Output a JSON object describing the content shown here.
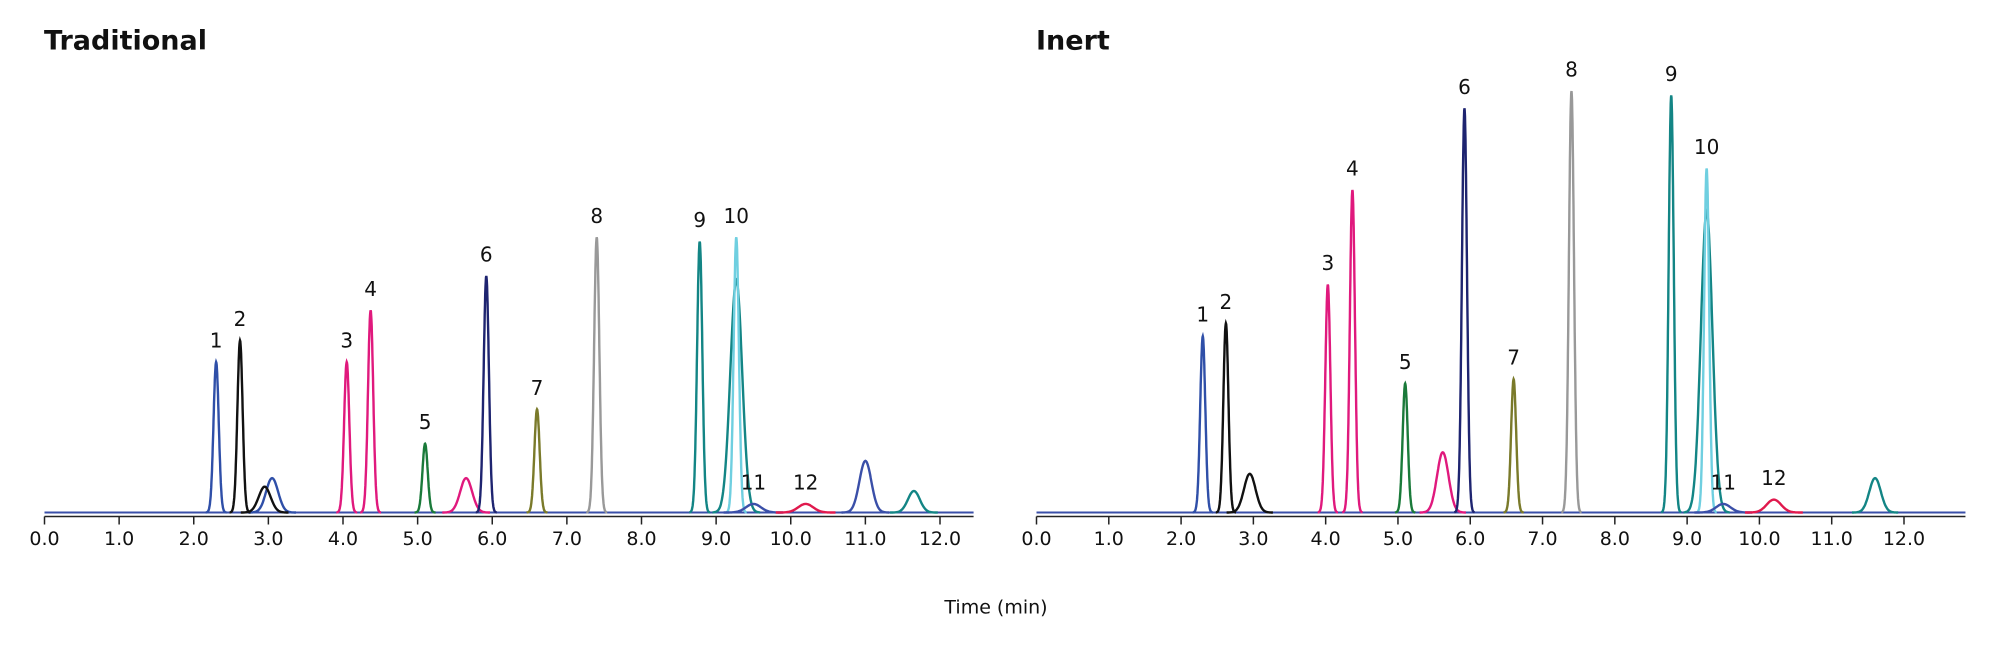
{
  "x_axis_label": "Time (min)",
  "chart_data": [
    {
      "type": "chromatogram",
      "title": "Traditional",
      "xlim": [
        0,
        12.45
      ],
      "ylim": [
        0,
        100
      ],
      "xticks": [
        {
          "value": 0,
          "label": "0.0"
        },
        {
          "value": 1,
          "label": "1.0"
        },
        {
          "value": 2,
          "label": "2.0"
        },
        {
          "value": 3,
          "label": "3.0"
        },
        {
          "value": 4,
          "label": "4.0"
        },
        {
          "value": 5,
          "label": "5.0"
        },
        {
          "value": 6,
          "label": "6.0"
        },
        {
          "value": 7,
          "label": "7.0"
        },
        {
          "value": 8,
          "label": "8.0"
        },
        {
          "value": 9,
          "label": "9.0"
        },
        {
          "value": 10,
          "label": "10.0"
        },
        {
          "value": 11,
          "label": "11.0"
        },
        {
          "value": 12,
          "label": "12.0"
        }
      ],
      "peaks": [
        {
          "label": "1",
          "time": 2.3,
          "height": 35,
          "color": "#2f4fa8"
        },
        {
          "label": "2",
          "time": 2.62,
          "height": 40,
          "color": "#111111"
        },
        {
          "label": "3",
          "time": 4.05,
          "height": 35,
          "color": "#e0197d"
        },
        {
          "label": "4",
          "time": 4.37,
          "height": 47,
          "color": "#e0197d"
        },
        {
          "label": "5",
          "time": 5.1,
          "height": 16,
          "color": "#1a7a3a"
        },
        {
          "label": "6",
          "time": 5.92,
          "height": 55,
          "color": "#1e2470"
        },
        {
          "label": "7",
          "time": 6.6,
          "height": 24,
          "color": "#7a7a2a"
        },
        {
          "label": "8",
          "time": 7.4,
          "height": 64,
          "color": "#999999"
        },
        {
          "label": "9",
          "time": 8.78,
          "height": 63,
          "color": "#138585"
        },
        {
          "label": "10",
          "time": 9.27,
          "height": 64,
          "color": "#6fcfe0"
        },
        {
          "label": "11",
          "time": 9.5,
          "height": 2,
          "color": "#3a4fa8"
        },
        {
          "label": "12",
          "time": 10.2,
          "height": 2,
          "color": "#e0194d"
        }
      ],
      "minor_peaks": [
        {
          "time": 9.27,
          "height": 54,
          "color": "#138585"
        },
        {
          "time": 3.05,
          "height": 8,
          "color": "#2f4fa8"
        },
        {
          "time": 2.95,
          "height": 6,
          "color": "#111111"
        },
        {
          "time": 5.65,
          "height": 8,
          "color": "#e0197d"
        },
        {
          "time": 11.0,
          "height": 12,
          "color": "#3a4fa8"
        },
        {
          "time": 11.65,
          "height": 5,
          "color": "#138585"
        }
      ]
    },
    {
      "type": "chromatogram",
      "title": "Inert",
      "xlim": [
        0,
        12.85
      ],
      "ylim": [
        0,
        100
      ],
      "xticks": [
        {
          "value": 0,
          "label": "0.0"
        },
        {
          "value": 1,
          "label": "1.0"
        },
        {
          "value": 2,
          "label": "2.0"
        },
        {
          "value": 3,
          "label": "3.0"
        },
        {
          "value": 4,
          "label": "4.0"
        },
        {
          "value": 5,
          "label": "5.0"
        },
        {
          "value": 6,
          "label": "6.0"
        },
        {
          "value": 7,
          "label": "7.0"
        },
        {
          "value": 8,
          "label": "8.0"
        },
        {
          "value": 9,
          "label": "9.0"
        },
        {
          "value": 10,
          "label": "10.0"
        },
        {
          "value": 11,
          "label": "11.0"
        },
        {
          "value": 12,
          "label": "12.0"
        }
      ],
      "peaks": [
        {
          "label": "1",
          "time": 2.3,
          "height": 41,
          "color": "#2f4fa8"
        },
        {
          "label": "2",
          "time": 2.62,
          "height": 44,
          "color": "#111111"
        },
        {
          "label": "3",
          "time": 4.03,
          "height": 53,
          "color": "#e0197d"
        },
        {
          "label": "4",
          "time": 4.37,
          "height": 75,
          "color": "#e0197d"
        },
        {
          "label": "5",
          "time": 5.1,
          "height": 30,
          "color": "#1a7a3a"
        },
        {
          "label": "6",
          "time": 5.92,
          "height": 94,
          "color": "#1e2470"
        },
        {
          "label": "7",
          "time": 6.6,
          "height": 31,
          "color": "#7a7a2a"
        },
        {
          "label": "8",
          "time": 7.4,
          "height": 98,
          "color": "#999999"
        },
        {
          "label": "9",
          "time": 8.78,
          "height": 97,
          "color": "#138585"
        },
        {
          "label": "10",
          "time": 9.27,
          "height": 80,
          "color": "#6fcfe0"
        },
        {
          "label": "11",
          "time": 9.5,
          "height": 2,
          "color": "#3a4fa8"
        },
        {
          "label": "12",
          "time": 10.2,
          "height": 3,
          "color": "#e0194d"
        }
      ],
      "minor_peaks": [
        {
          "time": 9.27,
          "height": 70,
          "color": "#138585"
        },
        {
          "time": 2.95,
          "height": 9,
          "color": "#111111"
        },
        {
          "time": 5.62,
          "height": 14,
          "color": "#e0197d"
        },
        {
          "time": 11.6,
          "height": 8,
          "color": "#138585"
        }
      ]
    }
  ]
}
